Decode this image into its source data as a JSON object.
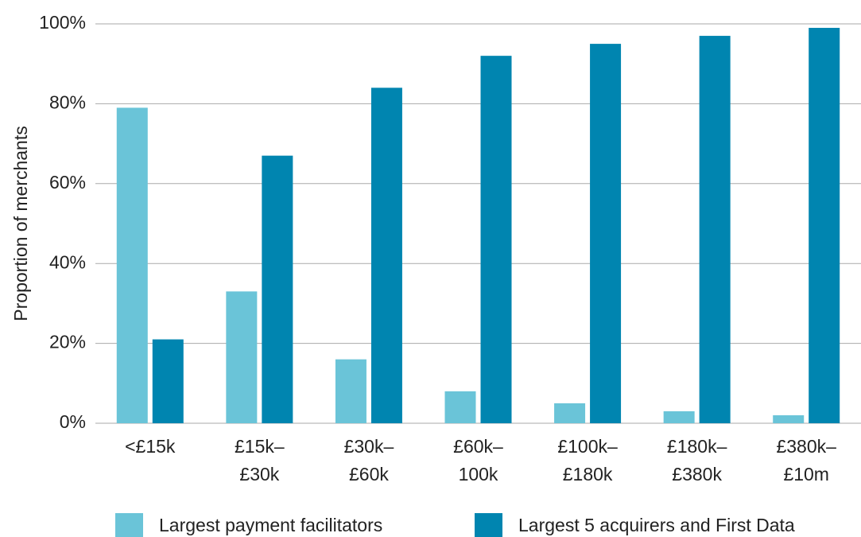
{
  "chart_data": {
    "type": "bar",
    "ylabel": "Proportion of merchants",
    "categories": [
      [
        "<£15k"
      ],
      [
        "£15k–",
        "£30k"
      ],
      [
        "£30k–",
        "£60k"
      ],
      [
        "£60k–",
        "100k"
      ],
      [
        "£100k–",
        "£180k"
      ],
      [
        "£180k–",
        "£380k"
      ],
      [
        "£380k–",
        "£10m"
      ]
    ],
    "series": [
      {
        "name": "Largest payment facilitators",
        "color": "#6ac4d8",
        "values": [
          79,
          33,
          16,
          8,
          5,
          3,
          2
        ]
      },
      {
        "name": "Largest 5 acquirers and First Data",
        "color": "#0085b0",
        "values": [
          21,
          67,
          84,
          92,
          95,
          97,
          99
        ]
      }
    ],
    "ylim": [
      0,
      100
    ],
    "yticks": [
      {
        "value": 0,
        "label": "0%"
      },
      {
        "value": 20,
        "label": "20%"
      },
      {
        "value": 40,
        "label": "40%"
      },
      {
        "value": 60,
        "label": "60%"
      },
      {
        "value": 80,
        "label": "80%"
      },
      {
        "value": 100,
        "label": "100%"
      }
    ],
    "grid": true
  }
}
